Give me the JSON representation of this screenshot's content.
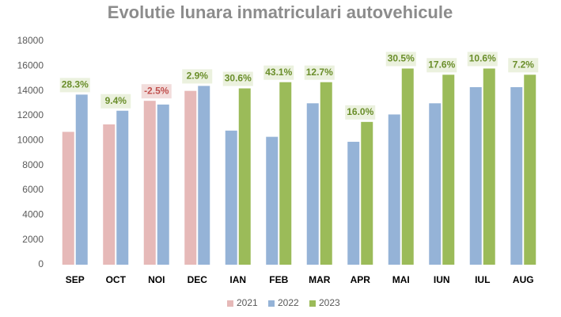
{
  "chart_data": {
    "type": "bar",
    "title": "Evolutie lunara inmatriculari autovehicule",
    "categories": [
      "SEP",
      "OCT",
      "NOI",
      "DEC",
      "IAN",
      "FEB",
      "MAR",
      "APR",
      "MAI",
      "IUN",
      "IUL",
      "AUG"
    ],
    "series": [
      {
        "name": "2021",
        "color": "#e6b9b8",
        "values": [
          10700,
          11300,
          13200,
          14000,
          null,
          null,
          null,
          null,
          null,
          null,
          null,
          null
        ]
      },
      {
        "name": "2022",
        "color": "#95b3d7",
        "values": [
          13700,
          12400,
          12900,
          14400,
          10800,
          10300,
          13000,
          9900,
          12100,
          13000,
          14300,
          14300
        ]
      },
      {
        "name": "2023",
        "color": "#9bbb59",
        "values": [
          null,
          null,
          null,
          null,
          14200,
          14700,
          14700,
          11500,
          15800,
          15300,
          15800,
          15300
        ]
      }
    ],
    "annotations": [
      "28.3%",
      "9.4%",
      "-2.5%",
      "2.9%",
      "30.6%",
      "43.1%",
      "12.7%",
      "16.0%",
      "30.5%",
      "17.6%",
      "10.6%",
      "7.2%"
    ],
    "ylim": [
      0,
      18000
    ],
    "yticks": [
      0,
      2000,
      4000,
      6000,
      8000,
      10000,
      12000,
      14000,
      16000,
      18000
    ],
    "grid": false,
    "legend": "bottom"
  }
}
